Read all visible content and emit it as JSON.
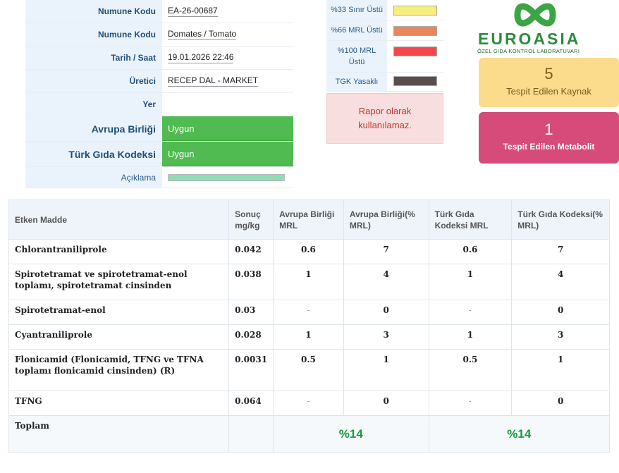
{
  "info": {
    "sample_code_label": "Numune Kodu",
    "sample_code_value": "EA-26-00687",
    "product_label": "Numune Kodu",
    "product_value": "Domates / Tomato",
    "date_label": "Tarih / Saat",
    "date_value": "19.01.2026 22:46",
    "producer_label": "Üretici",
    "producer_value": "RECEP DAL - MARKET",
    "place_label": "Yer",
    "place_value": "",
    "eu_label": "Avrupa Birliği",
    "eu_value": "Uygun",
    "tgk_label": "Türk Gıda Kodeksi",
    "tgk_value": "Uygun",
    "desc_label": "Açıklama",
    "desc_bar_color": "#8fdcb5"
  },
  "legend": {
    "items": [
      {
        "label": "%33 Sınır Üstü",
        "color": "#f8ee7e"
      },
      {
        "label": "%66 MRL Üstü",
        "color": "#e9875a"
      },
      {
        "label": "%100 MRL Üstü",
        "color": "#f5474b"
      },
      {
        "label": "TGK Yasaklı",
        "color": "#5a4d4d"
      }
    ],
    "note": "Rapor olarak kullanılamaz."
  },
  "logo": {
    "word": "EUROASIA",
    "subtitle": "ÖZEL GIDA KONTROL LABORATUVARI",
    "color": "#2e8b3d"
  },
  "cards": {
    "sources_count": "5",
    "sources_label": "Tespit Edilen Kaynak",
    "metabolites_count": "1",
    "metabolites_label": "Tespit Edilen Metabolit"
  },
  "results": {
    "headers": {
      "substance": "Etken Madde",
      "result": "Sonuç mg/kg",
      "eu_mrl": "Avrupa Birliği MRL",
      "eu_pct": "Avrupa Birliği(% MRL)",
      "tgk_mrl": "Türk Gıda Kodeksi MRL",
      "tgk_pct": "Türk Gıda Kodeksi(% MRL)"
    },
    "rows": [
      {
        "name": "Chlorantraniliprole",
        "result": "0.042",
        "eu_mrl": "0.6",
        "eu_pct": "7",
        "tgk_mrl": "0.6",
        "tgk_pct": "7"
      },
      {
        "name": "Spirotetramat ve spirotetramat-enol toplamı, spirotetramat cinsinden",
        "result": "0.038",
        "eu_mrl": "1",
        "eu_pct": "4",
        "tgk_mrl": "1",
        "tgk_pct": "4"
      },
      {
        "name": "Spirotetramat-enol",
        "result": "0.03",
        "eu_mrl": "-",
        "eu_pct": "0",
        "tgk_mrl": "-",
        "tgk_pct": "0"
      },
      {
        "name": "Cyantraniliprole",
        "result": "0.028",
        "eu_mrl": "1",
        "eu_pct": "3",
        "tgk_mrl": "1",
        "tgk_pct": "3"
      },
      {
        "name": "Flonicamid (Flonicamid, TFNG ve TFNA toplamı flonicamid cinsinden) (R)",
        "result": "0.0031",
        "eu_mrl": "0.5",
        "eu_pct": "1",
        "tgk_mrl": "0.5",
        "tgk_pct": "1"
      },
      {
        "name": "TFNG",
        "result": "0.064",
        "eu_mrl": "-",
        "eu_pct": "0",
        "tgk_mrl": "-",
        "tgk_pct": "0"
      }
    ],
    "total_label": "Toplam",
    "total_eu": "%14",
    "total_tgk": "%14"
  }
}
